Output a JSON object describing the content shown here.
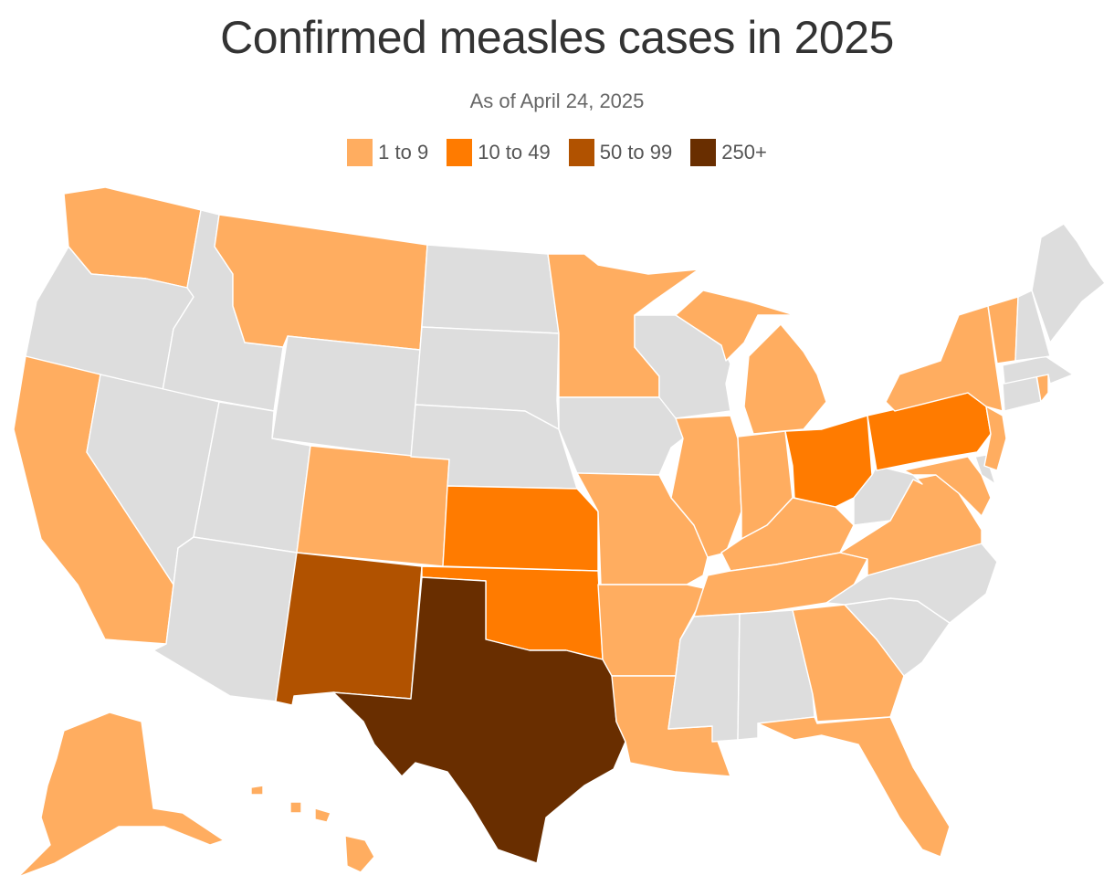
{
  "title": "Confirmed measles cases in 2025",
  "subtitle": "As of April 24, 2025",
  "legend": [
    {
      "label": "1 to 9",
      "color": "#ffad60"
    },
    {
      "label": "10 to 49",
      "color": "#ff7b00"
    },
    {
      "label": "50 to 99",
      "color": "#b15200"
    },
    {
      "label": "250+",
      "color": "#692e00"
    }
  ],
  "no_cases_color": "#dddddd",
  "states": {
    "WA": "1 to 9",
    "OR": "none",
    "CA": "1 to 9",
    "NV": "none",
    "ID": "none",
    "MT": "1 to 9",
    "WY": "none",
    "UT": "none",
    "AZ": "none",
    "CO": "1 to 9",
    "NM": "50 to 99",
    "ND": "none",
    "SD": "none",
    "NE": "none",
    "KS": "10 to 49",
    "OK": "10 to 49",
    "TX": "250+",
    "MN": "1 to 9",
    "IA": "none",
    "MO": "1 to 9",
    "AR": "1 to 9",
    "LA": "1 to 9",
    "WI": "none",
    "IL": "1 to 9",
    "MI": "1 to 9",
    "IN": "1 to 9",
    "OH": "10 to 49",
    "KY": "1 to 9",
    "TN": "1 to 9",
    "MS": "none",
    "AL": "none",
    "GA": "1 to 9",
    "FL": "1 to 9",
    "SC": "none",
    "NC": "none",
    "VA": "1 to 9",
    "WV": "none",
    "PA": "10 to 49",
    "NY": "1 to 9",
    "VT": "1 to 9",
    "NH": "none",
    "ME": "none",
    "MA": "none",
    "RI": "1 to 9",
    "CT": "none",
    "NJ": "1 to 9",
    "DE": "none",
    "MD": "1 to 9",
    "AK": "1 to 9",
    "HI": "1 to 9"
  }
}
